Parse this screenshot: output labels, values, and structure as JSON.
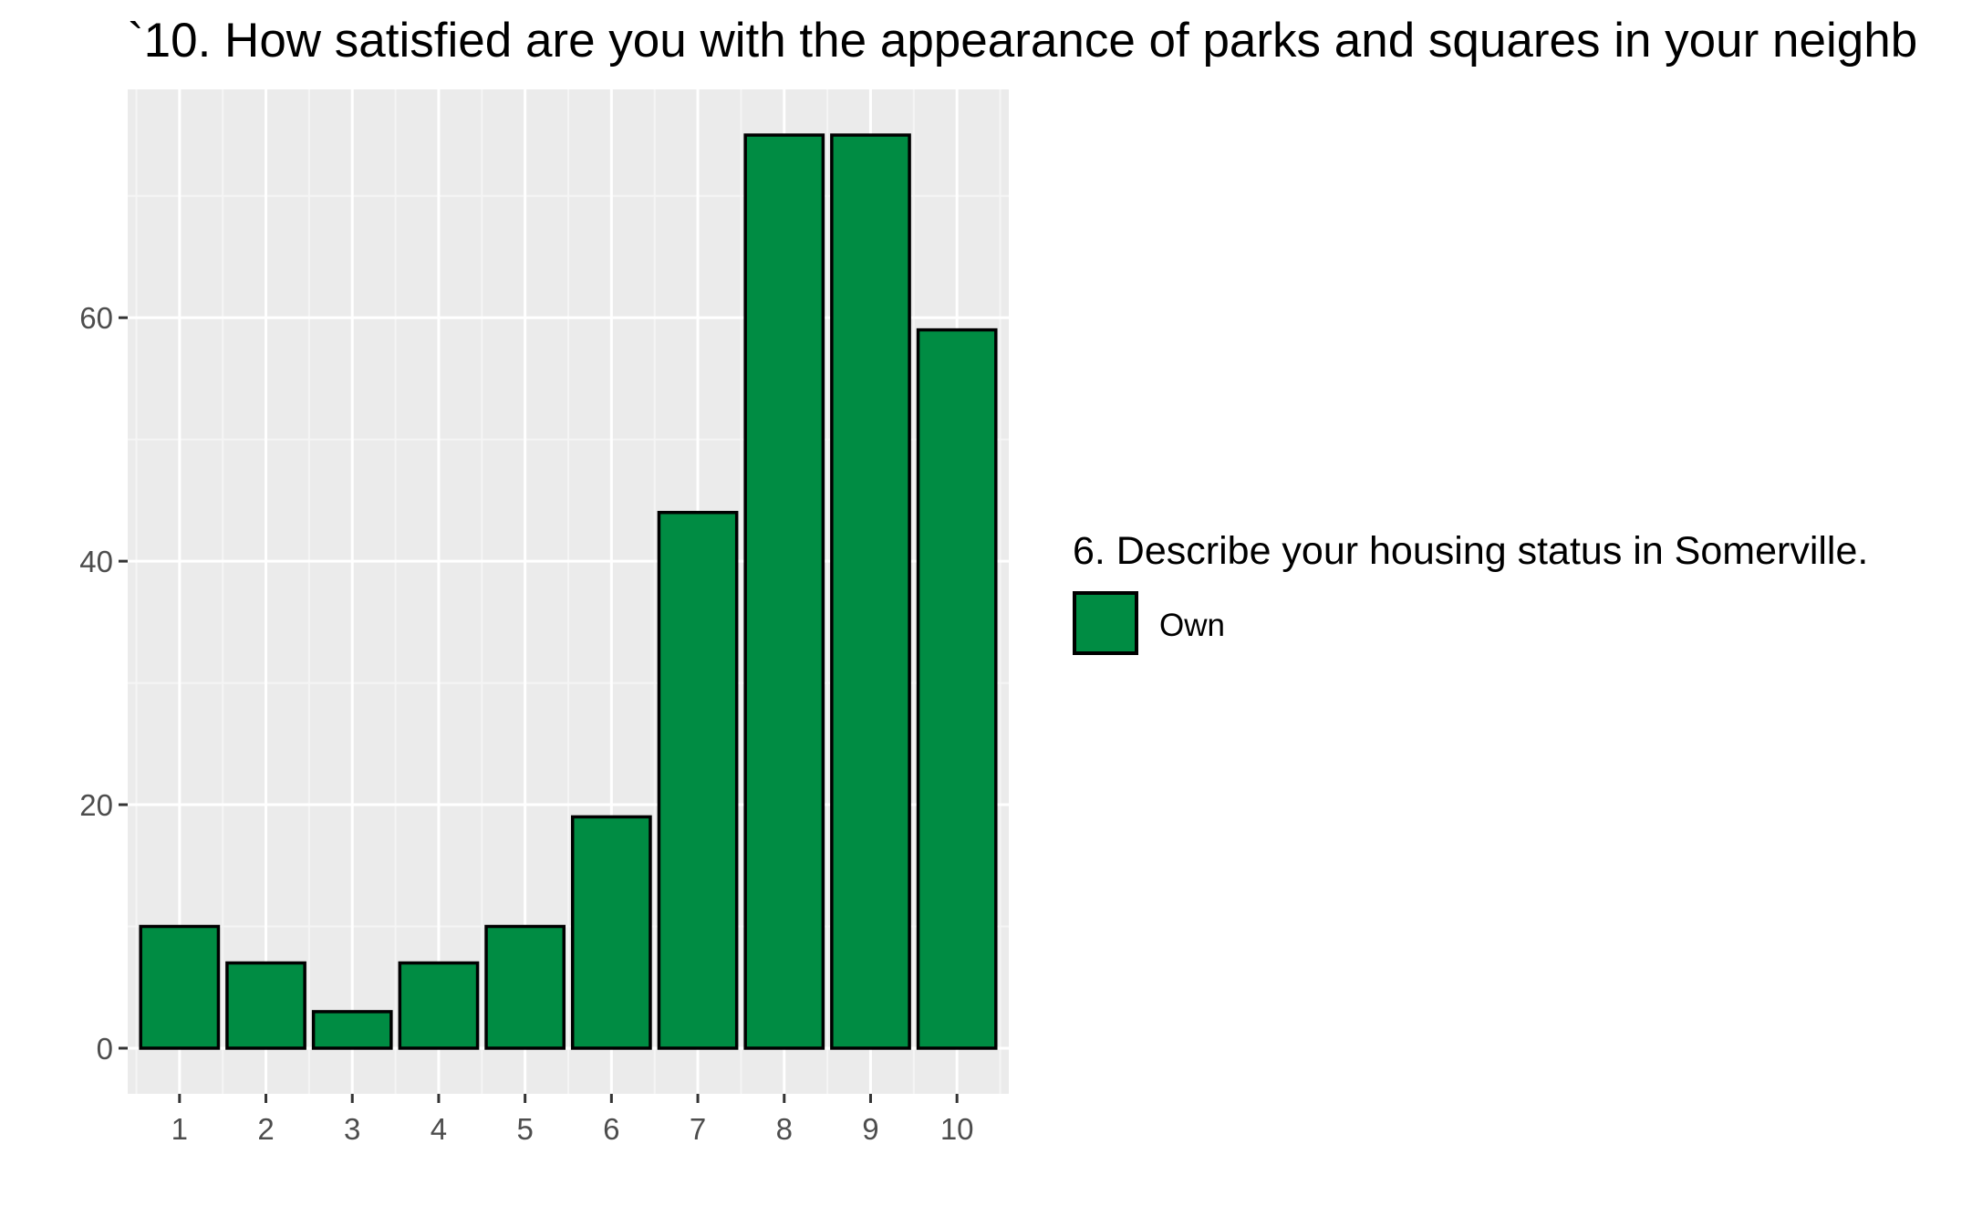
{
  "chart_data": {
    "type": "bar",
    "title": "`10. How satisfied are you with the appearance of parks and squares in your neighb",
    "xlabel": "",
    "ylabel": "",
    "categories": [
      "1",
      "2",
      "3",
      "4",
      "5",
      "6",
      "7",
      "8",
      "9",
      "10"
    ],
    "series": [
      {
        "name": "Own",
        "values": [
          10,
          7,
          3,
          7,
          10,
          19,
          44,
          75,
          75,
          59
        ]
      }
    ],
    "x_ticks": [
      "1",
      "2",
      "3",
      "4",
      "5",
      "6",
      "7",
      "8",
      "9",
      "10"
    ],
    "y_ticks": [
      0,
      20,
      40,
      60
    ],
    "ylim": [
      -3.75,
      78.75
    ],
    "grid": true,
    "legend": {
      "title": "6. Describe your housing status in Somerville.",
      "position": "right"
    },
    "colors": {
      "bar_fill": "#008c43",
      "bar_stroke": "#000000",
      "panel_background": "#ebebeb",
      "grid_major": "#ffffff",
      "grid_minor": "#f5f5f5"
    }
  }
}
